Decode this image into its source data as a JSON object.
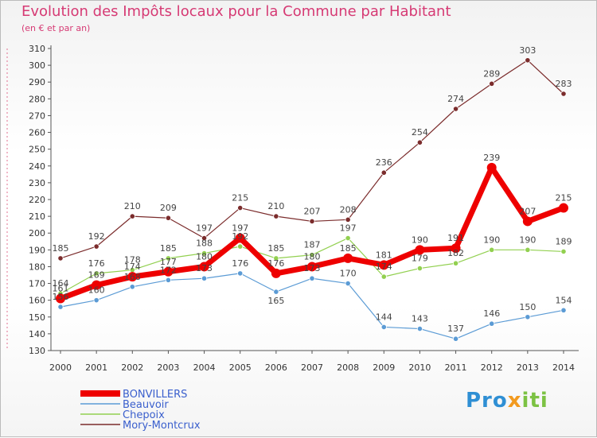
{
  "title": "Evolution des Impôts locaux pour la Commune par Habitant",
  "subtitle": "(en € et par an)",
  "logo": {
    "part1": "Pro",
    "part2": "x",
    "part3": "iti"
  },
  "chart_data": {
    "type": "line",
    "title": "Evolution des Impôts locaux pour la Commune par Habitant",
    "subtitle": "(en € et par an)",
    "x": [
      "2000",
      "2001",
      "2002",
      "2003",
      "2004",
      "2005",
      "2006",
      "2007",
      "2008",
      "2009",
      "2010",
      "2011",
      "2012",
      "2013",
      "2014"
    ],
    "ylim": [
      130,
      310
    ],
    "yticks": [
      130,
      140,
      150,
      160,
      170,
      180,
      190,
      200,
      210,
      220,
      230,
      240,
      250,
      260,
      270,
      280,
      290,
      300,
      310
    ],
    "grid": false,
    "legend_position": "bottom-left",
    "series": [
      {
        "name": "BONVILLERS",
        "color": "#ee0000",
        "values": [
          161,
          169,
          174,
          177,
          180,
          197,
          176,
          180,
          185,
          181,
          190,
          191,
          239,
          207,
          215
        ]
      },
      {
        "name": "Beauvoir",
        "color": "#5b9bd5",
        "values": [
          156,
          160,
          168,
          172,
          173,
          176,
          165,
          173,
          170,
          144,
          143,
          137,
          146,
          150,
          154
        ]
      },
      {
        "name": "Chepoix",
        "color": "#92d050",
        "values": [
          164,
          176,
          178,
          185,
          188,
          192,
          185,
          187,
          197,
          174,
          179,
          182,
          190,
          190,
          189
        ]
      },
      {
        "name": "Mory-Montcrux",
        "color": "#7b2c2c",
        "values": [
          185,
          192,
          210,
          209,
          197,
          215,
          210,
          207,
          208,
          236,
          254,
          274,
          289,
          303,
          283
        ]
      }
    ]
  }
}
